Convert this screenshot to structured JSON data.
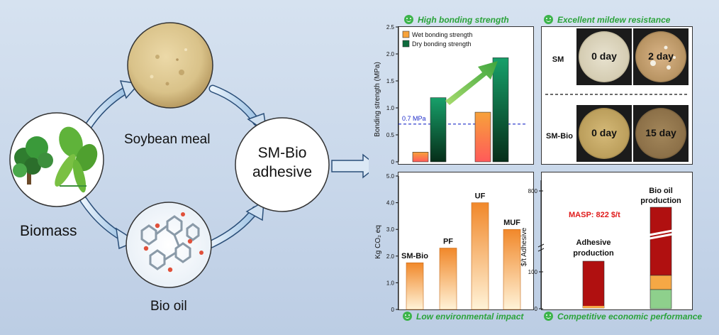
{
  "left": {
    "biomass": "Biomass",
    "soybean": "Soybean meal",
    "biooil": "Bio oil",
    "center": [
      "SM-Bio",
      "adhesive"
    ]
  },
  "panels": {
    "bonding_title": "High bonding strength",
    "mildew_title": "Excellent mildew resistance",
    "env_title": "Low environmental impact",
    "econ_title": "Competitive economic performance",
    "mildew": {
      "row1": "SM",
      "row2": "SM-Bio",
      "dishes": [
        "0 day",
        "2 day",
        "0 day",
        "15 day"
      ]
    }
  },
  "colors": {
    "green_title": "#2aa33a",
    "wet": "#f7a23a",
    "dry": "#0e6b3c",
    "env": "#f39232",
    "econ_red": "#b01010",
    "econ_orange": "#f5a845",
    "econ_green": "#8ed08c"
  },
  "chart_data": [
    {
      "type": "bar",
      "title": "",
      "ylabel": "Bonding strength (MPa)",
      "ylim": [
        0,
        2.5
      ],
      "yticks": [
        "0",
        "0.5",
        "1.0",
        "1.5",
        "2.0",
        "2.5"
      ],
      "categories": [
        "",
        ""
      ],
      "series": [
        {
          "name": "Wet bonding strength",
          "values": [
            0.18,
            0.92
          ]
        },
        {
          "name": "Dry bonding strength",
          "values": [
            1.19,
            1.93
          ]
        }
      ],
      "reference_line": {
        "value": 0.7,
        "label": "0.7 MPa"
      },
      "legend": "top-left"
    },
    {
      "type": "bar",
      "ylabel": "Kg CO₂ eq",
      "ylim": [
        0,
        5.0
      ],
      "yticks": [
        "0",
        "1.0",
        "2.0",
        "3.0",
        "4.0",
        "5.0"
      ],
      "categories": [
        "SM-Bio",
        "PF",
        "UF",
        "MUF"
      ],
      "values": [
        1.75,
        2.3,
        4.0,
        3.0
      ]
    },
    {
      "type": "bar",
      "ylabel": "$/t Adhesive",
      "yticks": [
        "0",
        "100",
        "800"
      ],
      "annotation": "MASP: 822 $/t",
      "categories": [
        "Adhesive production",
        "Bio oil production"
      ],
      "bar_labels": [
        [
          "Adhesive",
          "production"
        ],
        [
          "Bio oil",
          "production"
        ]
      ]
    }
  ]
}
